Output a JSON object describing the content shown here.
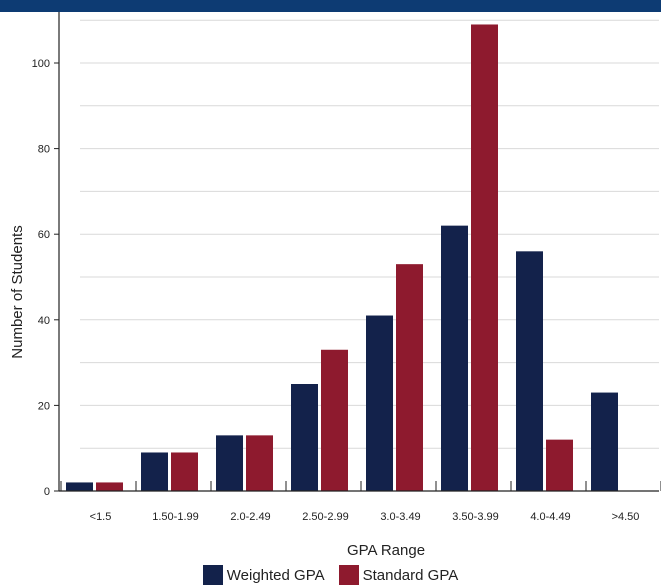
{
  "chart_data": {
    "type": "bar",
    "title": "",
    "xlabel": "GPA Range",
    "ylabel": "Number of Students",
    "categories": [
      "<1.5",
      "1.50-1.99",
      "2.0-2.49",
      "2.50-2.99",
      "3.0-3.49",
      "3.50-3.99",
      "4.0-4.49",
      ">4.50"
    ],
    "series": [
      {
        "name": "Weighted GPA",
        "color": "#13224b",
        "values": [
          2,
          9,
          13,
          25,
          41,
          62,
          56,
          23
        ]
      },
      {
        "name": "Standard GPA",
        "color": "#8e1a2e",
        "values": [
          2,
          9,
          13,
          33,
          53,
          109,
          12,
          0
        ]
      }
    ],
    "ylim": [
      0,
      110
    ],
    "yticks": [
      0,
      20,
      40,
      60,
      80,
      100
    ],
    "grid": true,
    "legend_position": "bottom"
  }
}
